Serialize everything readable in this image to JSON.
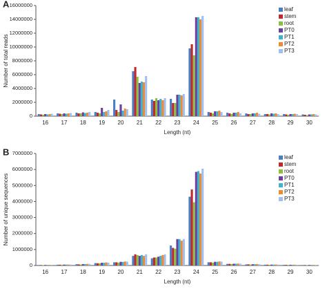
{
  "chart_data": [
    {
      "type": "bar",
      "panel_label": "A",
      "ylabel": "Number of total reads",
      "xlabel": "Length (nt)",
      "categories": [
        "16",
        "17",
        "18",
        "19",
        "20",
        "21",
        "22",
        "23",
        "24",
        "25",
        "26",
        "27",
        "28",
        "29",
        "30"
      ],
      "ylim": [
        0,
        16000000
      ],
      "yticks": [
        0,
        2000000,
        4000000,
        6000000,
        8000000,
        10000000,
        12000000,
        14000000,
        16000000
      ],
      "grid": false,
      "legend": "upper right",
      "series": [
        {
          "name": "leaf",
          "color": "#4a7ec4",
          "values": [
            300000,
            400000,
            500000,
            600000,
            2400000,
            6500000,
            2400000,
            2500000,
            9800000,
            600000,
            500000,
            400000,
            300000,
            300000,
            250000
          ]
        },
        {
          "name": "stem",
          "color": "#c0282d",
          "values": [
            250000,
            350000,
            400000,
            500000,
            900000,
            7100000,
            2200000,
            1900000,
            10400000,
            500000,
            400000,
            300000,
            300000,
            250000,
            200000
          ]
        },
        {
          "name": "root",
          "color": "#8cbf3f",
          "values": [
            200000,
            300000,
            400000,
            400000,
            600000,
            5700000,
            2600000,
            1900000,
            8800000,
            400000,
            300000,
            300000,
            250000,
            200000,
            150000
          ]
        },
        {
          "name": "PT0",
          "color": "#6a3fa0",
          "values": [
            300000,
            400000,
            550000,
            1200000,
            1700000,
            4800000,
            2300000,
            3100000,
            14300000,
            700000,
            500000,
            400000,
            400000,
            300000,
            250000
          ]
        },
        {
          "name": "PT1",
          "color": "#3cb4d0",
          "values": [
            250000,
            350000,
            450000,
            600000,
            800000,
            5000000,
            2500000,
            3100000,
            14300000,
            700000,
            500000,
            400000,
            350000,
            300000,
            250000
          ]
        },
        {
          "name": "PT2",
          "color": "#f08a30",
          "values": [
            300000,
            400000,
            500000,
            700000,
            1100000,
            4900000,
            2300000,
            3000000,
            14000000,
            800000,
            600000,
            500000,
            400000,
            350000,
            300000
          ]
        },
        {
          "name": "PT3",
          "color": "#a0bff0",
          "values": [
            350000,
            450000,
            600000,
            900000,
            1000000,
            5800000,
            2600000,
            3200000,
            14500000,
            600000,
            400000,
            350000,
            300000,
            300000,
            250000
          ]
        }
      ]
    },
    {
      "type": "bar",
      "panel_label": "B",
      "ylabel": "Number of unique sequences",
      "xlabel": "Length (nt)",
      "categories": [
        "16",
        "17",
        "18",
        "19",
        "20",
        "21",
        "22",
        "23",
        "24",
        "25",
        "26",
        "27",
        "28",
        "29",
        "30"
      ],
      "ylim": [
        0,
        7000000
      ],
      "yticks": [
        0,
        1000000,
        2000000,
        3000000,
        4000000,
        5000000,
        6000000,
        7000000
      ],
      "grid": false,
      "legend": "upper right",
      "series": [
        {
          "name": "leaf",
          "color": "#4a7ec4",
          "values": [
            30000,
            50000,
            80000,
            150000,
            200000,
            600000,
            450000,
            1250000,
            4300000,
            200000,
            100000,
            70000,
            50000,
            40000,
            30000
          ]
        },
        {
          "name": "stem",
          "color": "#c0282d",
          "values": [
            30000,
            50000,
            70000,
            140000,
            200000,
            700000,
            500000,
            1100000,
            4750000,
            200000,
            100000,
            70000,
            50000,
            40000,
            30000
          ]
        },
        {
          "name": "root",
          "color": "#8cbf3f",
          "values": [
            25000,
            45000,
            60000,
            130000,
            180000,
            650000,
            500000,
            1050000,
            3950000,
            180000,
            90000,
            60000,
            45000,
            35000,
            25000
          ]
        },
        {
          "name": "PT0",
          "color": "#6a3fa0",
          "values": [
            35000,
            55000,
            90000,
            170000,
            230000,
            600000,
            550000,
            1650000,
            5850000,
            230000,
            110000,
            80000,
            55000,
            45000,
            35000
          ]
        },
        {
          "name": "PT1",
          "color": "#3cb4d0",
          "values": [
            35000,
            55000,
            90000,
            170000,
            220000,
            650000,
            600000,
            1650000,
            5900000,
            230000,
            110000,
            80000,
            55000,
            45000,
            35000
          ]
        },
        {
          "name": "PT2",
          "color": "#f08a30",
          "values": [
            40000,
            60000,
            100000,
            190000,
            250000,
            600000,
            650000,
            1550000,
            5750000,
            250000,
            120000,
            90000,
            60000,
            50000,
            40000
          ]
        },
        {
          "name": "PT3",
          "color": "#a0bff0",
          "values": [
            40000,
            60000,
            100000,
            180000,
            240000,
            700000,
            700000,
            1650000,
            6050000,
            240000,
            110000,
            80000,
            60000,
            45000,
            35000
          ]
        }
      ]
    }
  ]
}
